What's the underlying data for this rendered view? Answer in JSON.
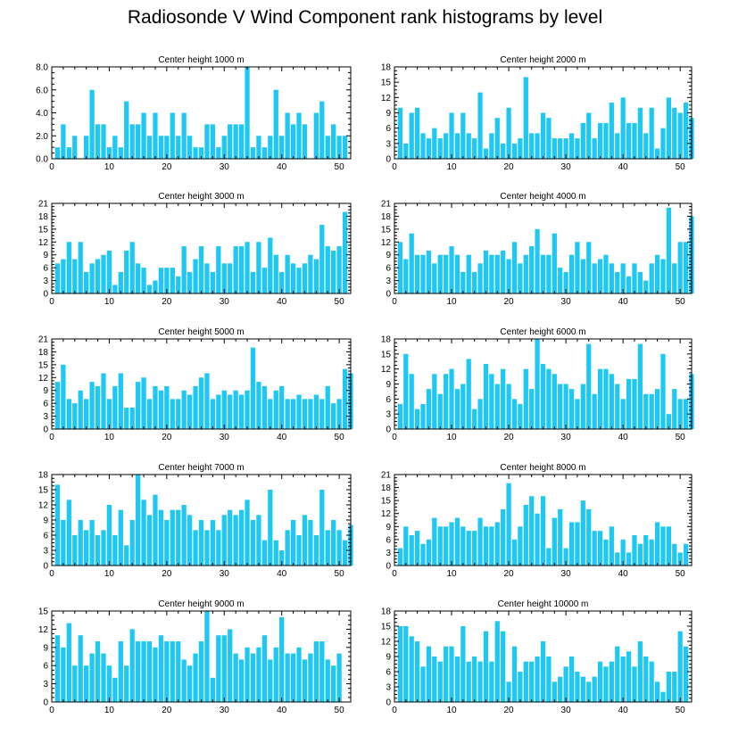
{
  "figure": {
    "title": "Radiosonde V Wind Component rank histograms by level",
    "bar_color": "#1ec8f5"
  },
  "chart_data": [
    {
      "type": "bar",
      "title": "Center height 1000 m",
      "xlim": [
        0,
        52
      ],
      "ylim": [
        0,
        8
      ],
      "xticks": [
        0,
        10,
        20,
        30,
        40,
        50
      ],
      "yticks": [
        "0.0",
        "2.0",
        "4.0",
        "6.0",
        "8.0"
      ],
      "ytick_values": [
        0,
        2,
        4,
        6,
        8
      ],
      "values": [
        1,
        3,
        1,
        2,
        0,
        2,
        6,
        3,
        3,
        1,
        2,
        1,
        5,
        3,
        3,
        4,
        2,
        4,
        2,
        2,
        4,
        2,
        4,
        2,
        1,
        1,
        3,
        3,
        1,
        2,
        3,
        3,
        3,
        8,
        1,
        2,
        1,
        2,
        6,
        2,
        4,
        3,
        4,
        3,
        0,
        4,
        5,
        2,
        3,
        2,
        2
      ]
    },
    {
      "type": "bar",
      "title": "Center height 2000 m",
      "xlim": [
        0,
        52
      ],
      "ylim": [
        0,
        18
      ],
      "xticks": [
        0,
        10,
        20,
        30,
        40,
        50
      ],
      "yticks": [
        "0",
        "3",
        "6",
        "9",
        "12",
        "15",
        "18"
      ],
      "ytick_values": [
        0,
        3,
        6,
        9,
        12,
        15,
        18
      ],
      "values": [
        10,
        3,
        9,
        10,
        5,
        4,
        6,
        4,
        5,
        9,
        5,
        9,
        5,
        4,
        13,
        2,
        5,
        8,
        3,
        10,
        3,
        4,
        16,
        5,
        5,
        9,
        8,
        4,
        4,
        4,
        5,
        4,
        7,
        9,
        4,
        7,
        7,
        11,
        5,
        12,
        7,
        7,
        10,
        5,
        10,
        2,
        6,
        12,
        10,
        9,
        11,
        8
      ]
    },
    {
      "type": "bar",
      "title": "Center height 3000 m",
      "xlim": [
        0,
        52
      ],
      "ylim": [
        0,
        21
      ],
      "xticks": [
        0,
        10,
        20,
        30,
        40,
        50
      ],
      "yticks": [
        "0",
        "3",
        "6",
        "9",
        "12",
        "15",
        "18",
        "21"
      ],
      "ytick_values": [
        0,
        3,
        6,
        9,
        12,
        15,
        18,
        21
      ],
      "values": [
        7,
        8,
        12,
        8,
        12,
        5,
        7,
        8,
        9,
        10,
        2,
        5,
        10,
        12,
        7,
        6,
        2,
        3,
        6,
        6,
        6,
        4,
        11,
        5,
        8,
        11,
        7,
        5,
        11,
        7,
        7,
        11,
        11,
        12,
        5,
        12,
        6,
        13,
        9,
        5,
        9,
        7,
        6,
        7,
        9,
        8,
        16,
        11,
        10,
        11,
        19
      ]
    },
    {
      "type": "bar",
      "title": "Center height 4000 m",
      "xlim": [
        0,
        52
      ],
      "ylim": [
        0,
        21
      ],
      "xticks": [
        0,
        10,
        20,
        30,
        40,
        50
      ],
      "yticks": [
        "0",
        "3",
        "6",
        "9",
        "12",
        "15",
        "18",
        "21"
      ],
      "ytick_values": [
        0,
        3,
        6,
        9,
        12,
        15,
        18,
        21
      ],
      "values": [
        12,
        8,
        14,
        9,
        9,
        10,
        7,
        9,
        9,
        11,
        9,
        5,
        9,
        5,
        7,
        10,
        9,
        9,
        10,
        8,
        12,
        7,
        9,
        11,
        15,
        9,
        9,
        14,
        6,
        5,
        9,
        12,
        8,
        12,
        7,
        8,
        9,
        7,
        5,
        7,
        4,
        7,
        5,
        3,
        7,
        9,
        8,
        20,
        7,
        12,
        12,
        18
      ]
    },
    {
      "type": "bar",
      "title": "Center height 5000 m",
      "xlim": [
        0,
        52
      ],
      "ylim": [
        0,
        21
      ],
      "xticks": [
        0,
        10,
        20,
        30,
        40,
        50
      ],
      "yticks": [
        "0",
        "3",
        "6",
        "9",
        "12",
        "15",
        "18",
        "21"
      ],
      "ytick_values": [
        0,
        3,
        6,
        9,
        12,
        15,
        18,
        21
      ],
      "values": [
        11,
        15,
        7,
        6,
        9,
        7,
        11,
        10,
        13,
        7,
        10,
        13,
        5,
        5,
        11,
        12,
        7,
        10,
        9,
        10,
        7,
        7,
        9,
        8,
        10,
        12,
        13,
        7,
        8,
        9,
        8,
        9,
        8,
        9,
        19,
        11,
        10,
        7,
        9,
        10,
        7,
        7,
        8,
        7,
        7,
        8,
        7,
        10,
        6,
        7,
        14,
        13
      ]
    },
    {
      "type": "bar",
      "title": "Center height 6000 m",
      "xlim": [
        0,
        52
      ],
      "ylim": [
        0,
        18
      ],
      "xticks": [
        0,
        10,
        20,
        30,
        40,
        50
      ],
      "yticks": [
        "0",
        "3",
        "6",
        "9",
        "12",
        "15",
        "18"
      ],
      "ytick_values": [
        0,
        3,
        6,
        9,
        12,
        15,
        18
      ],
      "values": [
        5,
        15,
        11,
        4,
        5,
        8,
        11,
        7,
        11,
        12,
        8,
        9,
        14,
        4,
        6,
        13,
        11,
        9,
        12,
        9,
        6,
        5,
        12,
        8,
        18,
        13,
        12,
        11,
        9,
        9,
        8,
        6,
        9,
        17,
        7,
        12,
        12,
        11,
        9,
        6,
        10,
        10,
        17,
        7,
        7,
        8,
        15,
        3,
        8,
        6,
        6,
        11
      ]
    },
    {
      "type": "bar",
      "title": "Center height 7000 m",
      "xlim": [
        0,
        52
      ],
      "ylim": [
        0,
        18
      ],
      "xticks": [
        0,
        10,
        20,
        30,
        40,
        50
      ],
      "yticks": [
        "0",
        "3",
        "6",
        "9",
        "12",
        "15",
        "18"
      ],
      "ytick_values": [
        0,
        3,
        6,
        9,
        12,
        15,
        18
      ],
      "values": [
        16,
        9,
        13,
        6,
        9,
        7,
        9,
        6,
        7,
        12,
        6,
        11,
        4,
        9,
        18,
        13,
        10,
        14,
        11,
        9,
        11,
        11,
        12,
        10,
        7,
        9,
        7,
        9,
        7,
        10,
        11,
        10,
        11,
        13,
        9,
        10,
        5,
        15,
        5,
        3,
        7,
        9,
        6,
        10,
        9,
        6,
        15,
        7,
        9,
        7,
        5,
        8
      ]
    },
    {
      "type": "bar",
      "title": "Center height 8000 m",
      "xlim": [
        0,
        52
      ],
      "ylim": [
        0,
        21
      ],
      "xticks": [
        0,
        10,
        20,
        30,
        40,
        50
      ],
      "yticks": [
        "0",
        "3",
        "6",
        "9",
        "12",
        "15",
        "18",
        "21"
      ],
      "ytick_values": [
        0,
        3,
        6,
        9,
        12,
        15,
        18,
        21
      ],
      "values": [
        4,
        9,
        7,
        8,
        5,
        6,
        11,
        9,
        9,
        10,
        11,
        9,
        8,
        8,
        11,
        9,
        9,
        10,
        13,
        19,
        6,
        9,
        14,
        16,
        12,
        16,
        4,
        11,
        13,
        4,
        10,
        10,
        15,
        13,
        8,
        8,
        6,
        9,
        3,
        6,
        3,
        7,
        5,
        7,
        6,
        10,
        9,
        9,
        5,
        3,
        5
      ]
    },
    {
      "type": "bar",
      "title": "Center height 9000 m",
      "xlim": [
        0,
        52
      ],
      "ylim": [
        0,
        15
      ],
      "xticks": [
        0,
        10,
        20,
        30,
        40,
        50
      ],
      "yticks": [
        "0",
        "3",
        "6",
        "9",
        "12",
        "15"
      ],
      "ytick_values": [
        0,
        3,
        6,
        9,
        12,
        15
      ],
      "values": [
        11,
        9,
        13,
        6,
        11,
        6,
        8,
        10,
        8,
        6,
        4,
        10,
        6,
        12,
        10,
        10,
        10,
        9,
        11,
        10,
        10,
        10,
        7,
        6,
        8,
        10,
        15,
        4,
        11,
        11,
        12,
        8,
        7,
        9,
        8,
        9,
        11,
        7,
        9,
        14,
        8,
        8,
        9,
        7,
        8,
        10,
        10,
        7,
        6,
        8
      ]
    },
    {
      "type": "bar",
      "title": "Center height 10000 m",
      "xlim": [
        0,
        52
      ],
      "ylim": [
        0,
        18
      ],
      "xticks": [
        0,
        10,
        20,
        30,
        40,
        50
      ],
      "yticks": [
        "0",
        "3",
        "6",
        "9",
        "12",
        "15",
        "18"
      ],
      "ytick_values": [
        0,
        3,
        6,
        9,
        12,
        15,
        18
      ],
      "values": [
        15,
        15,
        13,
        12,
        7,
        11,
        9,
        8,
        11,
        11,
        9,
        15,
        8,
        9,
        8,
        14,
        8,
        16,
        14,
        4,
        11,
        6,
        8,
        8,
        9,
        12,
        9,
        4,
        5,
        7,
        9,
        6,
        5,
        4,
        5,
        8,
        7,
        8,
        11,
        9,
        10,
        7,
        12,
        9,
        8,
        4,
        2,
        6,
        6,
        14,
        11
      ]
    }
  ]
}
